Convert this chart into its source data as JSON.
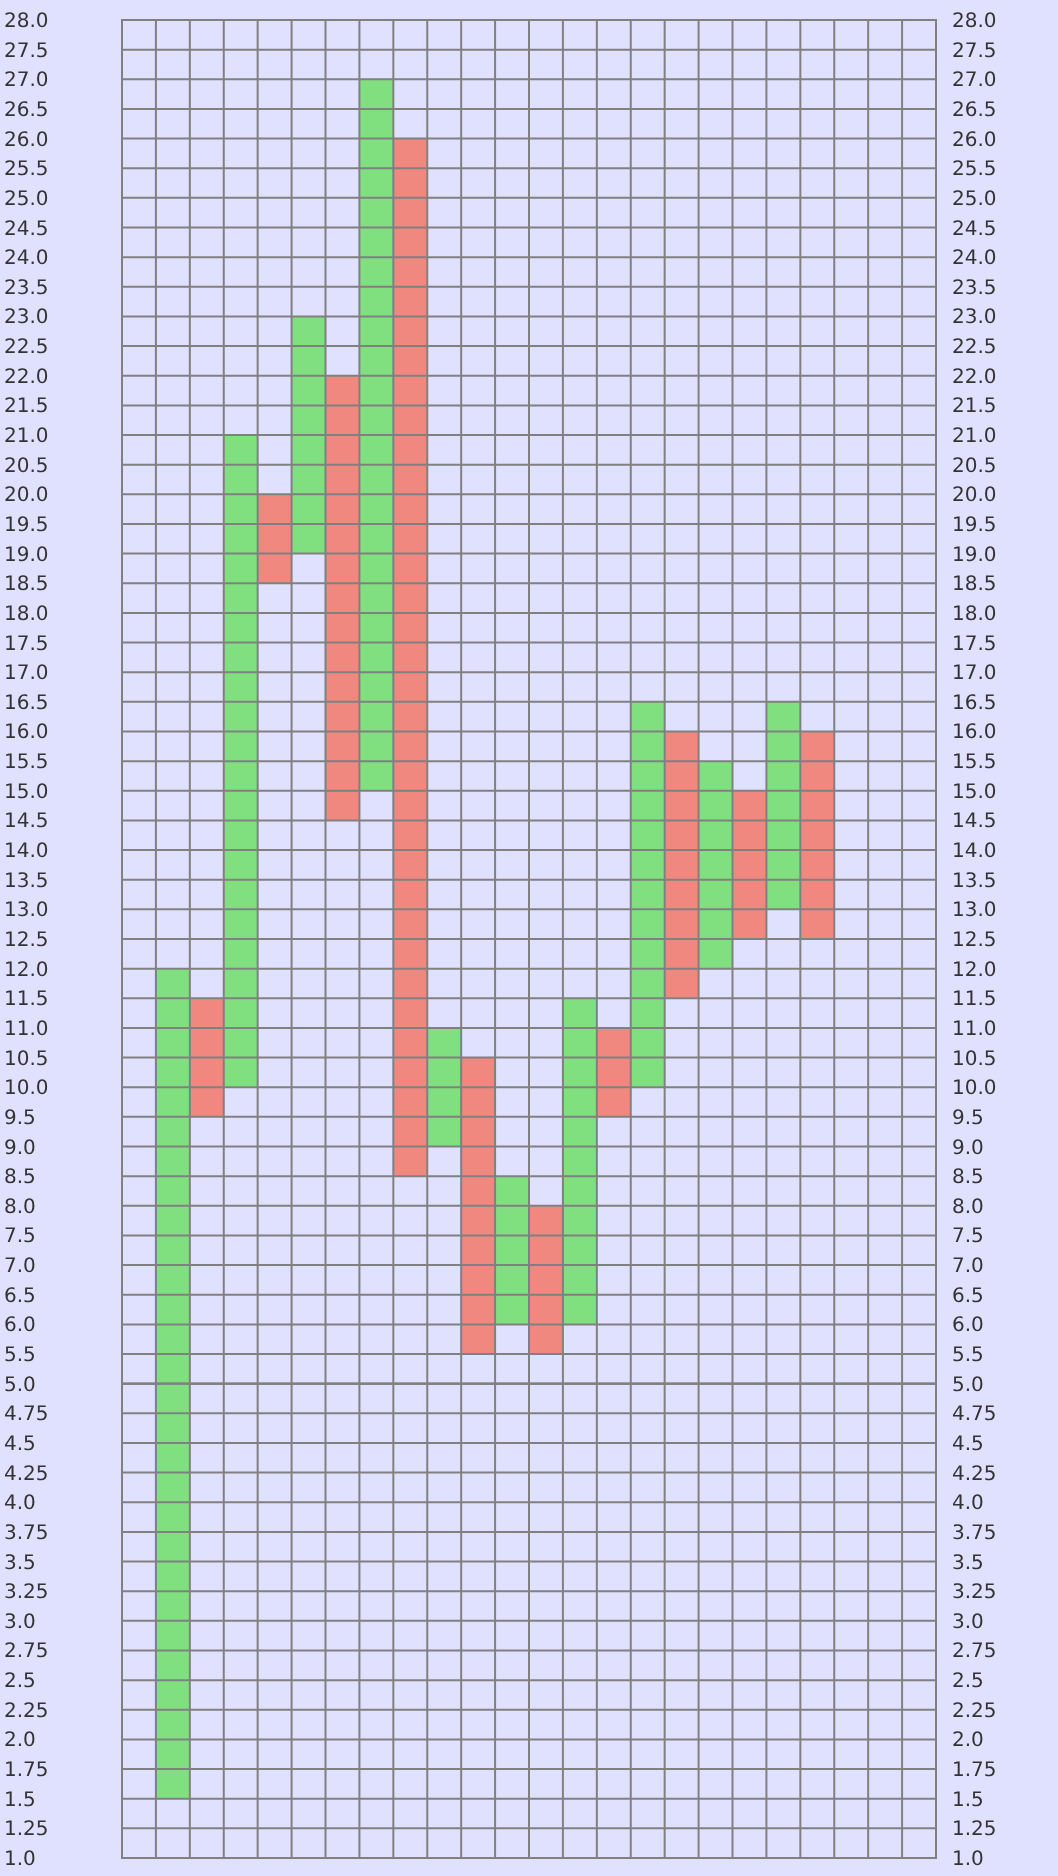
{
  "chart_data": [
    {
      "type": "bar",
      "categories": [
        null,
        null,
        null,
        null,
        null,
        null,
        null,
        null,
        null,
        null,
        null,
        null,
        null,
        null,
        null,
        null,
        null,
        null,
        null,
        null,
        null,
        null,
        null,
        null
      ],
      "values": [
        null,
        7,
        2,
        11,
        1.5,
        4,
        7.5,
        12,
        17.5,
        2,
        5,
        2.5,
        2.5,
        5.5,
        1.5,
        6.5,
        4.5,
        3.5,
        2.5,
        3.5,
        3.5,
        null,
        null,
        null
      ],
      "base": [
        null,
        5,
        9.5,
        10,
        18.5,
        19,
        14.5,
        15,
        8.5,
        9,
        5.5,
        6,
        5.5,
        6,
        9.5,
        10,
        11.5,
        12,
        12.5,
        13,
        12.5,
        null,
        null,
        null
      ],
      "colors": [
        null,
        "#80e080",
        "#f08880",
        "#80e080",
        "#f08880",
        "#80e080",
        "#f08880",
        "#80e080",
        "#f08880",
        "#80e080",
        "#f08880",
        "#80e080",
        "#f08880",
        "#80e080",
        "#f08880",
        "#80e080",
        "#f08880",
        "#80e080",
        "#f08880",
        "#80e080",
        "#f08880",
        null,
        null,
        null
      ],
      "ylim": [
        5,
        28
      ],
      "yticks": [
        5.5,
        {
          "value": 6,
          "label": "6.0"
        },
        6.5,
        {
          "value": 7,
          "label": "7.0"
        },
        7.5,
        {
          "value": 8,
          "label": "8.0"
        },
        8.5,
        {
          "value": 9,
          "label": "9.0"
        },
        9.5,
        {
          "value": 10,
          "label": "10.0"
        },
        10.5,
        {
          "value": 11,
          "label": "11.0"
        },
        11.5,
        {
          "value": 12,
          "label": "12.0"
        },
        12.5,
        {
          "value": 13,
          "label": "13.0"
        },
        13.5,
        {
          "value": 14,
          "label": "14.0"
        },
        14.5,
        {
          "value": 15,
          "label": "15.0"
        },
        15.5,
        {
          "value": 16,
          "label": "16.0"
        },
        16.5,
        {
          "value": 17,
          "label": "17.0"
        },
        17.5,
        {
          "value": 18,
          "label": "18.0"
        },
        18.5,
        {
          "value": 19,
          "label": "19.0"
        },
        19.5,
        {
          "value": 20,
          "label": "20.0"
        },
        20.5,
        {
          "value": 21,
          "label": "21.0"
        },
        21.5,
        {
          "value": 22,
          "label": "22.0"
        },
        22.5,
        {
          "value": 23,
          "label": "23.0"
        },
        23.5,
        {
          "value": 24,
          "label": "24.0"
        },
        24.5,
        {
          "value": 25,
          "label": "25.0"
        },
        25.5,
        {
          "value": 26,
          "label": "26.0"
        },
        26.5,
        {
          "value": 27,
          "label": "27.0"
        },
        27.5,
        {
          "value": 28,
          "label": "28.0"
        }
      ],
      "y2lim": [
        5,
        28
      ],
      "y2ticks": [
        5.5,
        {
          "value": 6,
          "label": "6.0"
        },
        6.5,
        {
          "value": 7,
          "label": "7.0"
        },
        7.5,
        {
          "value": 8,
          "label": "8.0"
        },
        8.5,
        {
          "value": 9,
          "label": "9.0"
        },
        9.5,
        {
          "value": 10,
          "label": "10.0"
        },
        10.5,
        {
          "value": 11,
          "label": "11.0"
        },
        11.5,
        {
          "value": 12,
          "label": "12.0"
        },
        12.5,
        {
          "value": 13,
          "label": "13.0"
        },
        13.5,
        {
          "value": 14,
          "label": "14.0"
        },
        14.5,
        {
          "value": 15,
          "label": "15.0"
        },
        15.5,
        {
          "value": 16,
          "label": "16.0"
        },
        16.5,
        {
          "value": 17,
          "label": "17.0"
        },
        17.5,
        {
          "value": 18,
          "label": "18.0"
        },
        18.5,
        {
          "value": 19,
          "label": "19.0"
        },
        19.5,
        {
          "value": 20,
          "label": "20.0"
        },
        20.5,
        {
          "value": 21,
          "label": "21.0"
        },
        21.5,
        {
          "value": 22,
          "label": "22.0"
        },
        22.5,
        {
          "value": 23,
          "label": "23.0"
        },
        23.5,
        {
          "value": 24,
          "label": "24.0"
        },
        24.5,
        {
          "value": 25,
          "label": "25.0"
        },
        25.5,
        {
          "value": 26,
          "label": "26.0"
        },
        26.5,
        {
          "value": 27,
          "label": "27.0"
        },
        27.5,
        {
          "value": 28,
          "label": "28.0"
        }
      ],
      "grid": true
    },
    {
      "type": "bar",
      "categories": [
        null,
        null,
        null,
        null,
        null,
        null,
        null,
        null,
        null,
        null,
        null,
        null,
        null,
        null,
        null,
        null,
        null,
        null,
        null,
        null,
        null,
        null,
        null,
        null
      ],
      "values": [
        null,
        3.5,
        null,
        null,
        null,
        null,
        null,
        null,
        null,
        null,
        null,
        null,
        null,
        null,
        null,
        null,
        null,
        null,
        null,
        null,
        null,
        null,
        null,
        null
      ],
      "base": [
        null,
        1.5,
        null,
        null,
        null,
        null,
        null,
        null,
        null,
        null,
        null,
        null,
        null,
        null,
        null,
        null,
        null,
        null,
        null,
        null,
        null,
        null,
        null,
        null
      ],
      "colors": [
        null,
        "#80e080",
        null,
        null,
        null,
        null,
        null,
        null,
        null,
        null,
        null,
        null,
        null,
        null,
        null,
        null,
        null,
        null,
        null,
        null,
        null,
        null,
        null,
        null
      ],
      "ylim": [
        1,
        5
      ],
      "yticks": [
        {
          "value": 1,
          "label": "1.0"
        },
        1.25,
        1.5,
        1.75,
        {
          "value": 2,
          "label": "2.0"
        },
        2.25,
        2.5,
        2.75,
        {
          "value": 3,
          "label": "3.0"
        },
        3.25,
        3.5,
        3.75,
        {
          "value": 4,
          "label": "4.0"
        },
        4.25,
        4.5,
        4.75,
        {
          "value": 5,
          "label": "5.0"
        }
      ],
      "y2lim": [
        1,
        5
      ],
      "y2ticks": [
        {
          "value": 1,
          "label": "1.0"
        },
        1.25,
        1.5,
        1.75,
        {
          "value": 2,
          "label": "2.0"
        },
        2.25,
        2.5,
        2.75,
        {
          "value": 3,
          "label": "3.0"
        },
        3.25,
        3.5,
        3.75,
        {
          "value": 4,
          "label": "4.0"
        },
        4.25,
        4.5,
        4.75,
        {
          "value": 5,
          "label": "5.0"
        }
      ],
      "grid": true
    }
  ]
}
